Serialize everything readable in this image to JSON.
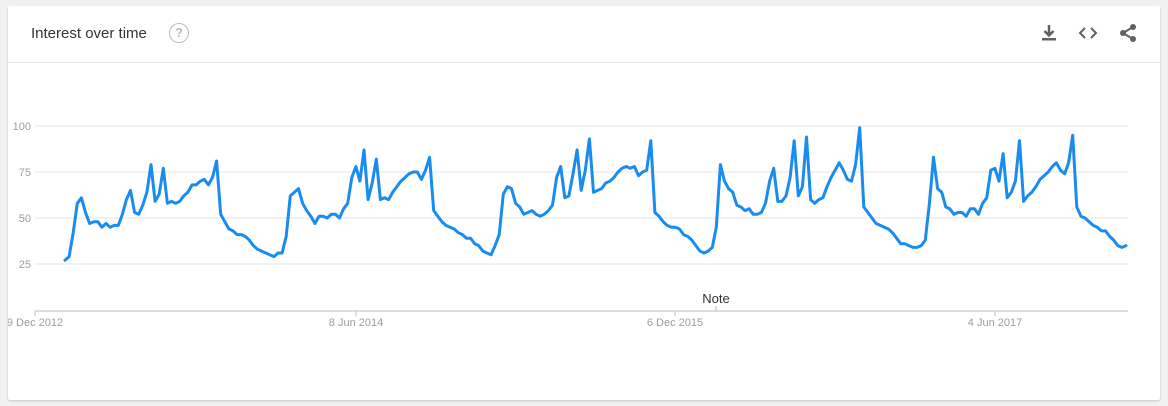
{
  "card": {
    "title": "Interest over time",
    "help_icon": "question-mark-circle-icon",
    "tools": [
      "download-icon",
      "embed-code-icon",
      "share-icon"
    ]
  },
  "colors": {
    "line": "#1a8cf0",
    "grid": "#e5e5e5",
    "axis": "#bdbdbd"
  },
  "chart_data": {
    "type": "line",
    "title": "",
    "xlabel": "",
    "ylabel": "",
    "ylim": [
      25,
      100
    ],
    "yticks": [
      25,
      50,
      75,
      100
    ],
    "x_tick_labels": [
      "9 Dec 2012",
      "8 Jun 2014",
      "6 Dec 2015",
      "4 Jun 2017"
    ],
    "note_label": "Note",
    "grid": true,
    "series": [
      {
        "values": [
          27,
          29,
          42,
          58,
          61,
          53,
          47,
          48,
          48,
          45,
          47,
          45,
          46,
          46,
          52,
          60,
          65,
          53,
          52,
          57,
          64,
          79,
          59,
          63,
          77,
          58,
          59,
          58,
          59,
          62,
          64,
          68,
          68,
          70,
          71,
          68,
          72,
          81,
          52,
          48,
          44,
          43,
          41,
          41,
          40,
          38,
          35,
          33,
          32,
          31,
          30,
          29,
          31,
          31,
          40,
          62,
          64,
          66,
          58,
          54,
          51,
          47,
          51,
          51,
          50,
          52,
          52,
          50,
          55,
          58,
          72,
          78,
          70,
          87,
          60,
          69,
          82,
          60,
          61,
          60,
          64,
          67,
          70,
          72,
          74,
          75,
          75,
          71,
          76,
          83,
          54,
          51,
          48,
          46,
          45,
          44,
          42,
          41,
          39,
          39,
          36,
          35,
          32,
          31,
          30,
          35,
          41,
          63,
          67,
          66,
          58,
          56,
          52,
          53,
          54,
          52,
          51,
          52,
          54,
          57,
          72,
          78,
          61,
          62,
          74,
          87,
          65,
          76,
          93,
          64,
          65,
          66,
          69,
          70,
          72,
          75,
          77,
          78,
          77,
          78,
          73,
          75,
          76,
          92,
          53,
          51,
          48,
          46,
          45,
          45,
          44,
          41,
          40,
          38,
          35,
          32,
          31,
          32,
          34,
          45,
          79,
          70,
          66,
          64,
          57,
          56,
          54,
          55,
          52,
          52,
          53,
          58,
          70,
          77,
          59,
          59,
          62,
          72,
          92,
          62,
          67,
          94,
          60,
          58,
          60,
          61,
          67,
          72,
          76,
          80,
          76,
          71,
          70,
          79,
          99,
          56,
          53,
          50,
          47,
          46,
          45,
          44,
          42,
          39,
          36,
          36,
          35,
          34,
          34,
          35,
          38,
          58,
          83,
          66,
          64,
          56,
          55,
          52,
          53,
          53,
          51,
          55,
          55,
          52,
          58,
          61,
          76,
          77,
          70,
          85,
          61,
          64,
          70,
          92,
          59,
          62,
          64,
          67,
          71,
          73,
          75,
          78,
          80,
          76,
          74,
          80,
          95,
          56,
          51,
          50,
          48,
          46,
          45,
          43,
          43,
          40,
          38,
          35,
          34,
          35
        ]
      }
    ]
  }
}
